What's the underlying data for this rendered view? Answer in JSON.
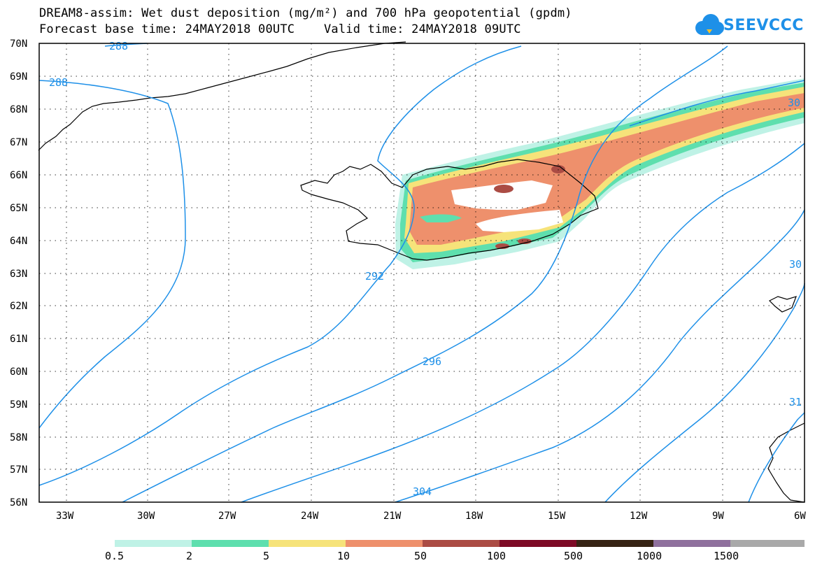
{
  "header": {
    "title_line1": "DREAM8-assim: Wet dust deposition (mg/m²) and 700 hPa geopotential (gpdm)",
    "title_line2": "Forecast base time: 24MAY2018 00UTC    Valid time: 24MAY2018 09UTC",
    "logo_text": "SEEVCCC"
  },
  "map": {
    "lat_labels": [
      "70N",
      "69N",
      "68N",
      "67N",
      "66N",
      "65N",
      "64N",
      "63N",
      "62N",
      "61N",
      "60N",
      "59N",
      "58N",
      "57N",
      "56N"
    ],
    "lon_labels": [
      "33W",
      "30W",
      "27W",
      "24W",
      "21W",
      "18W",
      "15W",
      "12W",
      "9W",
      "6W"
    ],
    "contour_labels": [
      "288",
      "288",
      "292",
      "296",
      "304",
      "30",
      "30",
      "31"
    ],
    "contour_color": "#1e90e8",
    "grid": "dotted"
  },
  "legend": {
    "labels": [
      "0.5",
      "2",
      "5",
      "10",
      "50",
      "100",
      "500",
      "1000",
      "1500"
    ],
    "colors": [
      "#bff2e6",
      "#5edfae",
      "#f6e37a",
      "#ee906c",
      "#ab4c44",
      "#7d0a25",
      "#362313",
      "#8f709d",
      "#a9a9a9"
    ]
  }
}
